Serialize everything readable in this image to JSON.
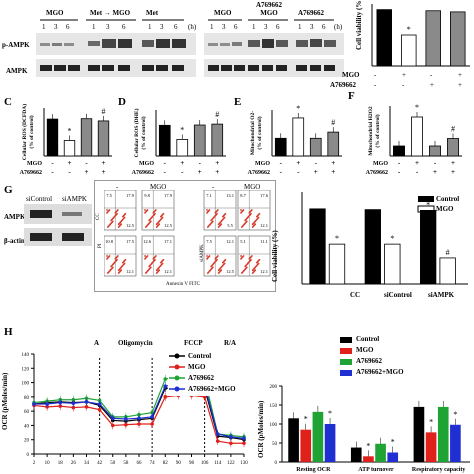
{
  "panelA": {
    "groups": [
      "MGO",
      "Met → MGO",
      "Met"
    ],
    "time_labels": [
      "1",
      "3",
      "6",
      "1",
      "3",
      "6",
      "1",
      "3",
      "6"
    ],
    "time_unit": "(h)",
    "rows": [
      "p-AMPK",
      "AMPK"
    ]
  },
  "panelB": {
    "groups": [
      "MGO",
      "A769662\nMGO",
      "A769662"
    ],
    "time_labels": [
      "1",
      "3",
      "6",
      "1",
      "3",
      "6",
      "1",
      "3",
      "6"
    ],
    "time_unit": "(h)"
  },
  "panel_letters": {
    "C": "C",
    "D": "D",
    "E": "E",
    "F": "F",
    "G": "G",
    "H": "H"
  },
  "treatment_rows": {
    "mgo_label": "MGO",
    "a769_label": "A769662",
    "mgo_signs": [
      "-",
      "+",
      "-",
      "+"
    ],
    "a769_signs": [
      "-",
      "-",
      "+",
      "+"
    ]
  },
  "panelCorner": {
    "ylabel": "Cell viability (%",
    "mgo_signs": [
      "-",
      "+",
      "-",
      "+"
    ],
    "a769_signs": [
      "-",
      "-",
      "+",
      "+"
    ],
    "star": "*"
  },
  "panelG": {
    "blot_headers": [
      "siControl",
      "siAMPK"
    ],
    "blot_rows": [
      "AMPK",
      "β-actin"
    ],
    "flow_col_headers": [
      "-",
      "MGO",
      "-",
      "MGO"
    ],
    "flow_row_labels": [
      "CC",
      "siAMPK"
    ],
    "flow_quadrants": [
      [
        "7.5",
        "17.9",
        "12.5"
      ],
      [
        "9.8",
        "17.9",
        "12.5"
      ],
      [
        "7.1",
        "13.1",
        "5.5"
      ],
      [
        "8.7",
        "17.6",
        "12.1"
      ],
      [
        "10.8",
        "17.5",
        "12.1"
      ],
      [
        "12.6",
        "17.1",
        "12.1"
      ],
      [
        "7.5",
        "12.1",
        "12.5"
      ],
      [
        "5.1",
        "11.1",
        "12.1"
      ]
    ],
    "flow_xlabel": "Annexin V FITC",
    "flow_ylabel": "PI",
    "legend": [
      "Control",
      "MGO"
    ],
    "ylabel": "Cell viability (%)",
    "group_labels": [
      "CC",
      "siControl",
      "siAMPK"
    ]
  },
  "panelH": {
    "annotations": [
      "A",
      "Oligomycin",
      "FCCP",
      "R/A"
    ],
    "ylabel": "OCR (pMoles/min)",
    "legend": [
      "Control",
      "MGO",
      "A769662",
      "A769662+MGO"
    ],
    "bar_ylabel": "OCR (pMoles/min)",
    "bar_groups": [
      "Resting OCR",
      "ATP turnover",
      "Respiratory capacity"
    ]
  },
  "colors": {
    "black": "#000000",
    "gray": "#8a8a8a",
    "red": "#e0201b",
    "green": "#1fa334",
    "blue": "#1f2fd1",
    "flow_red": "#d63a2a"
  },
  "chart_data": [
    {
      "type": "bar",
      "panel": "B-right",
      "categories": [
        "1",
        "2",
        "3",
        "4"
      ],
      "values": [
        100,
        55,
        98,
        96
      ],
      "ylabel": "Cell viability (%",
      "ylim": [
        0,
        110
      ]
    },
    {
      "type": "bar",
      "panel": "C",
      "categories": [
        "1",
        "2",
        "3",
        "4"
      ],
      "values": [
        100,
        42,
        101,
        95
      ],
      "ylabel": "Cellular ROS (DCFDA)\n(% of control)",
      "ylim": [
        0,
        130
      ]
    },
    {
      "type": "bar",
      "panel": "D",
      "categories": [
        "1",
        "2",
        "3",
        "4"
      ],
      "values": [
        100,
        54,
        101,
        104
      ],
      "ylabel": "Cellular ROS (DHE)\n(% of control)",
      "ylim": [
        0,
        150
      ]
    },
    {
      "type": "bar",
      "panel": "E",
      "categories": [
        "1",
        "2",
        "3",
        "4"
      ],
      "values": [
        100,
        215,
        100,
        135
      ],
      "ylabel": "Mitochondrial O2-\n(% of control)",
      "ylim": [
        0,
        260
      ]
    },
    {
      "type": "bar",
      "panel": "F",
      "categories": [
        "1",
        "2",
        "3",
        "4"
      ],
      "values": [
        100,
        390,
        100,
        175
      ],
      "ylabel": "Mitochondrial H2O2\n(% of control)",
      "ylim": [
        0,
        500
      ]
    },
    {
      "type": "bar",
      "panel": "G-right",
      "categories": [
        "CC",
        "siControl",
        "siAMPK"
      ],
      "series": [
        {
          "name": "Control",
          "values": [
            98,
            97,
            96
          ]
        },
        {
          "name": "MGO",
          "values": [
            52,
            52,
            34
          ]
        }
      ],
      "extra": {
        "values": [
          36
        ]
      },
      "ylabel": "Cell viability (%)",
      "ylim": [
        0,
        120
      ]
    },
    {
      "type": "line",
      "panel": "H-left",
      "x": [
        2,
        10,
        18,
        26,
        34,
        42,
        50,
        58,
        66,
        74,
        82,
        90,
        98,
        106,
        114,
        122,
        130
      ],
      "series": [
        {
          "name": "Control",
          "values": [
            70,
            72,
            73,
            72,
            73,
            68,
            47,
            46,
            48,
            50,
            92,
            93,
            95,
            92,
            25,
            23,
            20
          ]
        },
        {
          "name": "MGO",
          "values": [
            68,
            66,
            67,
            65,
            66,
            62,
            40,
            41,
            42,
            42,
            80,
            82,
            82,
            80,
            18,
            15,
            15
          ]
        },
        {
          "name": "A769662",
          "values": [
            72,
            74,
            76,
            76,
            78,
            75,
            52,
            52,
            55,
            58,
            105,
            108,
            110,
            106,
            28,
            26,
            24
          ]
        },
        {
          "name": "A769662+MGO",
          "values": [
            70,
            70,
            72,
            71,
            73,
            70,
            50,
            49,
            50,
            52,
            95,
            98,
            100,
            96,
            28,
            24,
            22
          ]
        }
      ],
      "ylim": [
        0,
        140
      ],
      "ylabel": "OCR (pMoles/min)"
    },
    {
      "type": "bar",
      "panel": "H-right",
      "categories": [
        "Resting OCR",
        "ATP turnover",
        "Respiratory capacity"
      ],
      "series": [
        {
          "name": "Control",
          "values": [
            115,
            38,
            145
          ]
        },
        {
          "name": "MGO",
          "values": [
            85,
            15,
            78
          ]
        },
        {
          "name": "A769662",
          "values": [
            132,
            48,
            145
          ]
        },
        {
          "name": "A769662+MGO",
          "values": [
            100,
            25,
            98
          ]
        }
      ],
      "ylim": [
        0,
        200
      ],
      "ylabel": "OCR (pMoles/min)"
    }
  ]
}
